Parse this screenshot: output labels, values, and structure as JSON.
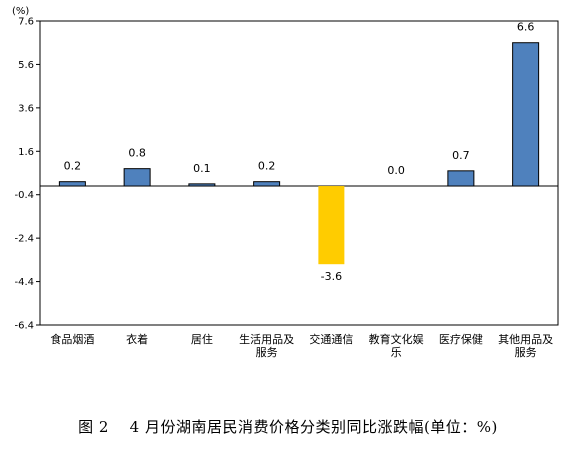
{
  "chart_data": {
    "type": "bar",
    "unit_label": "(%)",
    "categories": [
      [
        "食品烟酒"
      ],
      [
        "衣着"
      ],
      [
        "居住"
      ],
      [
        "生活用品及",
        "服务"
      ],
      [
        "交通通信"
      ],
      [
        "教育文化娱",
        "乐"
      ],
      [
        "医疗保健"
      ],
      [
        "其他用品及",
        "服务"
      ]
    ],
    "values": [
      0.2,
      0.8,
      0.1,
      0.2,
      -3.6,
      0.0,
      0.7,
      6.6
    ],
    "data_labels": [
      "0.2",
      "0.8",
      "0.1",
      "0.2",
      "-3.6",
      "0.0",
      "0.7",
      "6.6"
    ],
    "ylim": [
      -6.4,
      7.6
    ],
    "yticks": [
      7.6,
      5.6,
      3.6,
      1.6,
      -0.4,
      -2.4,
      -4.4,
      -6.4
    ],
    "ytick_labels": [
      "7.6",
      "5.6",
      "3.6",
      "1.6",
      "-0.4",
      "-2.4",
      "-4.4",
      "-6.4"
    ],
    "grid": false,
    "colors": {
      "positive": "#4f81bd",
      "negative": "#ffcc00",
      "border": "#000000"
    },
    "caption": "图 2　 4 月份湖南居民消费价格分类别同比涨跌幅(单位：%)"
  }
}
